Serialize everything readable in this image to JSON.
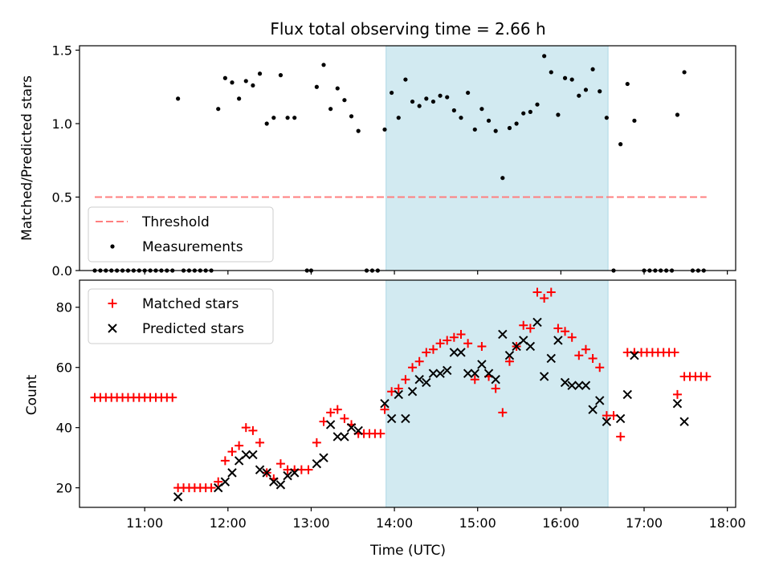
{
  "figure": {
    "title": "Flux total observing time = 2.66 h",
    "xlabel": "Time (UTC)",
    "xticks": [
      "11:00",
      "12:00",
      "13:00",
      "14:00",
      "15:00",
      "16:00",
      "17:00",
      "18:00"
    ],
    "colors": {
      "highlight": "#add8e6",
      "threshold": "#ff7f7f",
      "matched": "#ff0000",
      "predicted": "#000000",
      "measurement": "#000000"
    }
  },
  "chart_data": [
    {
      "type": "scatter",
      "ylabel": "Matched/Predicted stars",
      "xlim": [
        "10:13",
        "18:06"
      ],
      "ylim": [
        0,
        1.53
      ],
      "yticks": [
        "0.0",
        "0.5",
        "1.0",
        "1.5"
      ],
      "highlight_span": [
        "13:54",
        "16:34"
      ],
      "legend": {
        "placement": "lower-left",
        "entries": [
          "Threshold",
          "Measurements"
        ]
      },
      "threshold": {
        "name": "Threshold",
        "y": 0.5,
        "x_from": "10:24",
        "x_to": "17:45"
      },
      "series": [
        {
          "name": "Measurements",
          "points": [
            [
              "10:24",
              0
            ],
            [
              "10:28",
              0
            ],
            [
              "10:32",
              0
            ],
            [
              "10:36",
              0
            ],
            [
              "10:40",
              0
            ],
            [
              "10:44",
              0
            ],
            [
              "10:48",
              0
            ],
            [
              "10:52",
              0
            ],
            [
              "10:56",
              0
            ],
            [
              "11:00",
              0
            ],
            [
              "11:04",
              0
            ],
            [
              "11:08",
              0
            ],
            [
              "11:12",
              0
            ],
            [
              "11:16",
              0
            ],
            [
              "11:20",
              0
            ],
            [
              "11:24",
              1.17
            ],
            [
              "11:28",
              0
            ],
            [
              "11:32",
              0
            ],
            [
              "11:36",
              0
            ],
            [
              "11:40",
              0
            ],
            [
              "11:44",
              0
            ],
            [
              "11:48",
              0
            ],
            [
              "11:53",
              1.1
            ],
            [
              "11:58",
              1.31
            ],
            [
              "12:03",
              1.28
            ],
            [
              "12:08",
              1.17
            ],
            [
              "12:13",
              1.29
            ],
            [
              "12:18",
              1.26
            ],
            [
              "12:23",
              1.34
            ],
            [
              "12:28",
              1.0
            ],
            [
              "12:33",
              1.04
            ],
            [
              "12:38",
              1.33
            ],
            [
              "12:43",
              1.04
            ],
            [
              "12:48",
              1.04
            ],
            [
              "12:57",
              0
            ],
            [
              "13:00",
              0
            ],
            [
              "13:04",
              1.25
            ],
            [
              "13:09",
              1.4
            ],
            [
              "13:14",
              1.1
            ],
            [
              "13:19",
              1.24
            ],
            [
              "13:24",
              1.16
            ],
            [
              "13:29",
              1.05
            ],
            [
              "13:34",
              0.95
            ],
            [
              "13:40",
              0
            ],
            [
              "13:44",
              0
            ],
            [
              "13:48",
              0
            ],
            [
              "13:53",
              0.96
            ],
            [
              "13:58",
              1.21
            ],
            [
              "14:03",
              1.04
            ],
            [
              "14:08",
              1.3
            ],
            [
              "14:13",
              1.15
            ],
            [
              "14:18",
              1.12
            ],
            [
              "14:23",
              1.17
            ],
            [
              "14:28",
              1.15
            ],
            [
              "14:33",
              1.19
            ],
            [
              "14:38",
              1.18
            ],
            [
              "14:43",
              1.09
            ],
            [
              "14:48",
              1.04
            ],
            [
              "14:53",
              1.21
            ],
            [
              "14:58",
              0.96
            ],
            [
              "15:03",
              1.1
            ],
            [
              "15:08",
              1.02
            ],
            [
              "15:13",
              0.95
            ],
            [
              "15:18",
              0.63
            ],
            [
              "15:23",
              0.97
            ],
            [
              "15:28",
              1.0
            ],
            [
              "15:33",
              1.07
            ],
            [
              "15:38",
              1.08
            ],
            [
              "15:43",
              1.13
            ],
            [
              "15:48",
              1.46
            ],
            [
              "15:53",
              1.35
            ],
            [
              "15:58",
              1.06
            ],
            [
              "16:03",
              1.31
            ],
            [
              "16:08",
              1.3
            ],
            [
              "16:13",
              1.19
            ],
            [
              "16:18",
              1.23
            ],
            [
              "16:23",
              1.37
            ],
            [
              "16:28",
              1.22
            ],
            [
              "16:33",
              1.04
            ],
            [
              "16:38",
              0
            ],
            [
              "16:43",
              0.86
            ],
            [
              "16:48",
              1.27
            ],
            [
              "16:53",
              1.02
            ],
            [
              "17:00",
              0
            ],
            [
              "17:04",
              0
            ],
            [
              "17:08",
              0
            ],
            [
              "17:12",
              0
            ],
            [
              "17:16",
              0
            ],
            [
              "17:20",
              0
            ],
            [
              "17:24",
              1.06
            ],
            [
              "17:29",
              1.35
            ],
            [
              "17:35",
              0
            ],
            [
              "17:39",
              0
            ],
            [
              "17:43",
              0
            ]
          ]
        }
      ]
    },
    {
      "type": "scatter",
      "ylabel": "Count",
      "xlim": [
        "10:13",
        "18:06"
      ],
      "ylim": [
        13.5,
        89
      ],
      "yticks": [
        "20",
        "40",
        "60",
        "80"
      ],
      "highlight_span": [
        "13:54",
        "16:34"
      ],
      "legend": {
        "placement": "upper-left",
        "entries": [
          "Matched stars",
          "Predicted stars"
        ]
      },
      "series": [
        {
          "name": "Matched stars",
          "marker": "+",
          "points": [
            [
              "10:24",
              50
            ],
            [
              "10:28",
              50
            ],
            [
              "10:32",
              50
            ],
            [
              "10:36",
              50
            ],
            [
              "10:40",
              50
            ],
            [
              "10:44",
              50
            ],
            [
              "10:48",
              50
            ],
            [
              "10:52",
              50
            ],
            [
              "10:56",
              50
            ],
            [
              "11:00",
              50
            ],
            [
              "11:04",
              50
            ],
            [
              "11:08",
              50
            ],
            [
              "11:12",
              50
            ],
            [
              "11:16",
              50
            ],
            [
              "11:20",
              50
            ],
            [
              "11:24",
              20
            ],
            [
              "11:28",
              20
            ],
            [
              "11:32",
              20
            ],
            [
              "11:36",
              20
            ],
            [
              "11:40",
              20
            ],
            [
              "11:44",
              20
            ],
            [
              "11:48",
              20
            ],
            [
              "11:53",
              22
            ],
            [
              "11:58",
              29
            ],
            [
              "12:03",
              32
            ],
            [
              "12:08",
              34
            ],
            [
              "12:13",
              40
            ],
            [
              "12:18",
              39
            ],
            [
              "12:23",
              35
            ],
            [
              "12:28",
              25
            ],
            [
              "12:33",
              23
            ],
            [
              "12:38",
              28
            ],
            [
              "12:43",
              26
            ],
            [
              "12:48",
              26
            ],
            [
              "12:53",
              26
            ],
            [
              "12:58",
              26
            ],
            [
              "13:04",
              35
            ],
            [
              "13:09",
              42
            ],
            [
              "13:14",
              45
            ],
            [
              "13:19",
              46
            ],
            [
              "13:24",
              43
            ],
            [
              "13:29",
              41
            ],
            [
              "13:34",
              38
            ],
            [
              "13:38",
              38
            ],
            [
              "13:42",
              38
            ],
            [
              "13:46",
              38
            ],
            [
              "13:50",
              38
            ],
            [
              "13:53",
              46
            ],
            [
              "13:58",
              52
            ],
            [
              "14:03",
              53
            ],
            [
              "14:08",
              56
            ],
            [
              "14:13",
              60
            ],
            [
              "14:18",
              62
            ],
            [
              "14:23",
              65
            ],
            [
              "14:28",
              66
            ],
            [
              "14:33",
              68
            ],
            [
              "14:38",
              69
            ],
            [
              "14:43",
              70
            ],
            [
              "14:48",
              71
            ],
            [
              "14:53",
              68
            ],
            [
              "14:58",
              56
            ],
            [
              "15:03",
              67
            ],
            [
              "15:08",
              57
            ],
            [
              "15:13",
              53
            ],
            [
              "15:18",
              45
            ],
            [
              "15:23",
              62
            ],
            [
              "15:28",
              67
            ],
            [
              "15:33",
              74
            ],
            [
              "15:38",
              73
            ],
            [
              "15:43",
              85
            ],
            [
              "15:48",
              83
            ],
            [
              "15:53",
              85
            ],
            [
              "15:58",
              73
            ],
            [
              "16:03",
              72
            ],
            [
              "16:08",
              70
            ],
            [
              "16:13",
              64
            ],
            [
              "16:18",
              66
            ],
            [
              "16:23",
              63
            ],
            [
              "16:28",
              60
            ],
            [
              "16:33",
              44
            ],
            [
              "16:38",
              44
            ],
            [
              "16:43",
              37
            ],
            [
              "16:48",
              65
            ],
            [
              "16:53",
              65
            ],
            [
              "16:58",
              65
            ],
            [
              "17:02",
              65
            ],
            [
              "17:06",
              65
            ],
            [
              "17:10",
              65
            ],
            [
              "17:14",
              65
            ],
            [
              "17:18",
              65
            ],
            [
              "17:22",
              65
            ],
            [
              "17:24",
              51
            ],
            [
              "17:29",
              57
            ],
            [
              "17:33",
              57
            ],
            [
              "17:37",
              57
            ],
            [
              "17:41",
              57
            ],
            [
              "17:45",
              57
            ]
          ]
        },
        {
          "name": "Predicted stars",
          "marker": "x",
          "points": [
            [
              "11:24",
              17
            ],
            [
              "11:53",
              20
            ],
            [
              "11:58",
              22
            ],
            [
              "12:03",
              25
            ],
            [
              "12:08",
              29
            ],
            [
              "12:13",
              31
            ],
            [
              "12:18",
              31
            ],
            [
              "12:23",
              26
            ],
            [
              "12:28",
              25
            ],
            [
              "12:33",
              22
            ],
            [
              "12:38",
              21
            ],
            [
              "12:43",
              24
            ],
            [
              "12:48",
              25
            ],
            [
              "13:04",
              28
            ],
            [
              "13:09",
              30
            ],
            [
              "13:14",
              41
            ],
            [
              "13:19",
              37
            ],
            [
              "13:24",
              37
            ],
            [
              "13:29",
              40
            ],
            [
              "13:34",
              39
            ],
            [
              "13:53",
              48
            ],
            [
              "13:58",
              43
            ],
            [
              "14:03",
              51
            ],
            [
              "14:08",
              43
            ],
            [
              "14:13",
              52
            ],
            [
              "14:18",
              56
            ],
            [
              "14:23",
              55
            ],
            [
              "14:28",
              58
            ],
            [
              "14:33",
              58
            ],
            [
              "14:38",
              59
            ],
            [
              "14:43",
              65
            ],
            [
              "14:48",
              65
            ],
            [
              "14:53",
              58
            ],
            [
              "14:58",
              58
            ],
            [
              "15:03",
              61
            ],
            [
              "15:08",
              58
            ],
            [
              "15:13",
              56
            ],
            [
              "15:18",
              71
            ],
            [
              "15:23",
              64
            ],
            [
              "15:28",
              67
            ],
            [
              "15:33",
              69
            ],
            [
              "15:38",
              67
            ],
            [
              "15:43",
              75
            ],
            [
              "15:48",
              57
            ],
            [
              "15:53",
              63
            ],
            [
              "15:58",
              69
            ],
            [
              "16:03",
              55
            ],
            [
              "16:08",
              54
            ],
            [
              "16:13",
              54
            ],
            [
              "16:18",
              54
            ],
            [
              "16:23",
              46
            ],
            [
              "16:28",
              49
            ],
            [
              "16:33",
              42
            ],
            [
              "16:43",
              43
            ],
            [
              "16:48",
              51
            ],
            [
              "16:53",
              64
            ],
            [
              "17:24",
              48
            ],
            [
              "17:29",
              42
            ]
          ]
        }
      ]
    }
  ]
}
